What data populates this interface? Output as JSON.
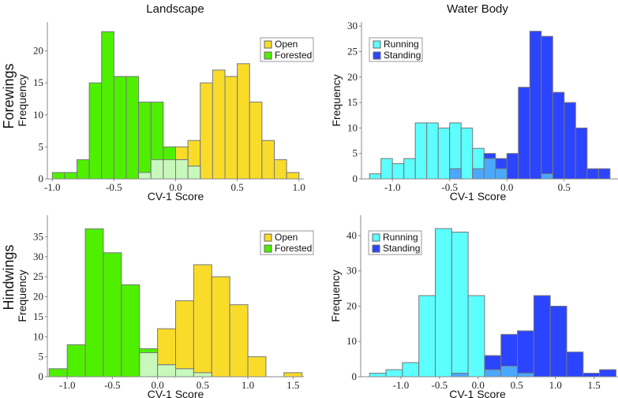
{
  "column_titles": [
    "Landscape",
    "Water Body"
  ],
  "row_titles": [
    "Forewings",
    "Hindwings"
  ],
  "colors": {
    "open": "#f9dc2a",
    "forested": "#4ef000",
    "overlap_land": "#c8f8bc",
    "running": "#5cfefe",
    "standing": "#2b44ff",
    "overlap_water": "#4aa8ff",
    "edge": "#777777"
  },
  "chart_data": [
    {
      "type": "bar",
      "title": "Landscape",
      "row": "Forewings",
      "xlabel": "CV-1 Score",
      "ylabel": "Frequency",
      "xlim": [
        -1.04,
        1.04
      ],
      "ylim": [
        0,
        24.5
      ],
      "xticks": [
        -1.0,
        -0.5,
        0.0,
        0.5,
        1.0
      ],
      "xtick_labels": [
        "-1.0",
        "-0.5",
        "0.0",
        "0.5",
        "1.0"
      ],
      "yticks": [
        0,
        5,
        10,
        15,
        20
      ],
      "legend": "top-right",
      "bin_start": -1.0,
      "bin_width": 0.1,
      "series": [
        {
          "name": "Open",
          "color_key": "open",
          "values": [
            0,
            0,
            0,
            0,
            0,
            0,
            0,
            1,
            3,
            3,
            5,
            6,
            15,
            17,
            16,
            18,
            12,
            6,
            3,
            1
          ]
        },
        {
          "name": "Forested",
          "color_key": "forested",
          "values": [
            1,
            1,
            3,
            15,
            23,
            16,
            16,
            12,
            12,
            5,
            3,
            2,
            0,
            0,
            0,
            0,
            0,
            0,
            0,
            0
          ]
        }
      ],
      "overlap_color_key": "overlap_land"
    },
    {
      "type": "bar",
      "title": "Water Body",
      "row": "Forewings",
      "xlabel": "CV-1 Score",
      "ylabel": "Frequency",
      "xlim": [
        -1.27,
        0.97
      ],
      "ylim": [
        0,
        30.8
      ],
      "xticks": [
        -1.0,
        -0.5,
        0.0,
        0.5
      ],
      "xtick_labels": [
        "-1.0",
        "-0.5",
        "0.0",
        "0.5"
      ],
      "yticks": [
        0,
        5,
        10,
        15,
        20,
        25,
        30
      ],
      "legend": "top-left",
      "bin_start": -1.2,
      "bin_width": 0.1,
      "series": [
        {
          "name": "Running",
          "color_key": "running",
          "values": [
            1,
            4,
            3,
            4,
            11,
            11,
            10,
            11,
            10,
            6,
            4,
            2,
            0,
            0,
            0,
            1,
            0,
            0,
            0,
            0,
            0
          ]
        },
        {
          "name": "Standing",
          "color_key": "standing",
          "values": [
            0,
            0,
            0,
            0,
            0,
            0,
            0,
            2,
            0,
            2,
            5,
            4,
            5,
            18,
            29,
            28,
            17,
            15,
            10,
            2,
            2
          ]
        }
      ],
      "overlap_color_key": "overlap_water"
    },
    {
      "type": "bar",
      "title": "Landscape",
      "row": "Hindwings",
      "xlabel": "CV-1 Score",
      "ylabel": "Frequency",
      "xlim": [
        -1.22,
        1.62
      ],
      "ylim": [
        0,
        40.4
      ],
      "xticks": [
        -1.0,
        -0.5,
        0.0,
        0.5,
        1.0,
        1.5
      ],
      "xtick_labels": [
        "-1.0",
        "-0.5",
        "0.0",
        "0.5",
        "1.0",
        "1.5"
      ],
      "yticks": [
        0,
        5,
        10,
        15,
        20,
        25,
        30,
        35
      ],
      "legend": "top-right",
      "bin_start": -1.2,
      "bin_width": 0.2,
      "series": [
        {
          "name": "Open",
          "color_key": "open",
          "values": [
            0,
            0,
            0,
            0,
            0,
            6,
            12,
            19,
            28,
            25,
            18,
            5,
            0,
            1
          ]
        },
        {
          "name": "Forested",
          "color_key": "forested",
          "values": [
            2,
            8,
            37,
            31,
            23,
            7,
            3,
            2,
            1,
            0,
            0,
            0,
            0,
            0
          ]
        }
      ],
      "overlap_color_key": "overlap_land"
    },
    {
      "type": "bar",
      "title": "Water Body",
      "row": "Hindwings",
      "xlabel": "CV-1 Score",
      "ylabel": "Frequency",
      "xlim": [
        -1.52,
        1.81
      ],
      "ylim": [
        0,
        45.8
      ],
      "xticks": [
        -1.0,
        -0.5,
        0.0,
        0.5,
        1.0,
        1.5
      ],
      "xtick_labels": [
        "-1.0",
        "-0.5",
        "0.0",
        "0.5",
        "1.0",
        "1.5"
      ],
      "yticks": [
        0,
        10,
        20,
        30,
        40
      ],
      "legend": "top-left",
      "bin_start": -1.405,
      "bin_width": 0.2126,
      "series": [
        {
          "name": "Running",
          "color_key": "running",
          "values": [
            1,
            2,
            4,
            23,
            42,
            41,
            23,
            2,
            3,
            1,
            0,
            0,
            0,
            0,
            0
          ]
        },
        {
          "name": "Standing",
          "color_key": "standing",
          "values": [
            0,
            0,
            0,
            0,
            0,
            1,
            0,
            6,
            12,
            13,
            23,
            20,
            7,
            1,
            2
          ]
        }
      ],
      "overlap_color_key": "overlap_water"
    }
  ]
}
